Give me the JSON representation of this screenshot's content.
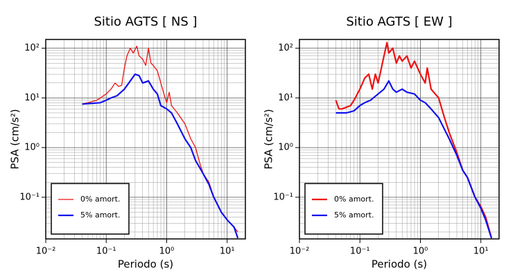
{
  "chart_data": [
    {
      "type": "line",
      "title": "Sitio AGTS [ NS ]",
      "x_label": "Periodo (s)",
      "y_label": "PSA (cm/s²)",
      "xscale": "log",
      "yscale": "log",
      "grid": true,
      "minor_grid": true,
      "legend": "lower left",
      "xlim": [
        0.01,
        20
      ],
      "ylim": [
        0.0145,
        150
      ],
      "xticks": [
        {
          "value": 0.01,
          "label": "10⁻²"
        },
        {
          "value": 0.1,
          "label": "10⁻¹"
        },
        {
          "value": 1,
          "label": "10⁰"
        },
        {
          "value": 10,
          "label": "10¹"
        }
      ],
      "yticks": [
        {
          "value": 0.1,
          "label": "10⁻¹"
        },
        {
          "value": 1,
          "label": "10⁰"
        },
        {
          "value": 10,
          "label": "10¹"
        },
        {
          "value": 100,
          "label": "10²"
        }
      ],
      "series": [
        {
          "name": "0% amort.",
          "color": "#ee1111",
          "width": 1.3,
          "x": [
            0.04,
            0.05,
            0.06,
            0.07,
            0.08,
            0.1,
            0.12,
            0.14,
            0.16,
            0.18,
            0.2,
            0.22,
            0.25,
            0.28,
            0.32,
            0.35,
            0.4,
            0.45,
            0.5,
            0.55,
            0.6,
            0.7,
            0.8,
            0.9,
            1.0,
            1.1,
            1.2,
            1.5,
            2,
            2.5,
            3,
            3.5,
            4,
            5,
            6,
            8,
            10,
            13,
            15
          ],
          "values": [
            7.5,
            8,
            8.5,
            9,
            10,
            12,
            15,
            20,
            17,
            18,
            40,
            70,
            100,
            80,
            110,
            70,
            60,
            45,
            100,
            50,
            45,
            35,
            20,
            12,
            8,
            13,
            7,
            5,
            3,
            1.5,
            1.0,
            0.5,
            0.3,
            0.2,
            0.1,
            0.05,
            0.035,
            0.025,
            0.02
          ]
        },
        {
          "name": "5% amort.",
          "color": "#1111ee",
          "width": 2.2,
          "x": [
            0.04,
            0.06,
            0.08,
            0.1,
            0.12,
            0.15,
            0.2,
            0.25,
            0.3,
            0.35,
            0.4,
            0.5,
            0.6,
            0.7,
            0.8,
            1.0,
            1.2,
            1.5,
            2,
            2.5,
            3,
            4,
            5,
            6,
            8,
            10,
            13,
            15
          ],
          "values": [
            7.5,
            7.8,
            8,
            9,
            10,
            11,
            15,
            22,
            30,
            28,
            20,
            22,
            15,
            12,
            7,
            6,
            5,
            3,
            1.5,
            1.0,
            0.55,
            0.3,
            0.18,
            0.1,
            0.05,
            0.035,
            0.025,
            0.015
          ]
        }
      ]
    },
    {
      "type": "line",
      "title": "Sitio AGTS [ EW ]",
      "x_label": "Periodo (s)",
      "y_label": "PSA (cm/s²)",
      "xscale": "log",
      "yscale": "log",
      "grid": true,
      "minor_grid": true,
      "legend": "lower left",
      "xlim": [
        0.01,
        20
      ],
      "ylim": [
        0.0145,
        150
      ],
      "xticks": [
        {
          "value": 0.01,
          "label": "10⁻²"
        },
        {
          "value": 0.1,
          "label": "10⁻¹"
        },
        {
          "value": 1,
          "label": "10⁰"
        },
        {
          "value": 10,
          "label": "10¹"
        }
      ],
      "yticks": [
        {
          "value": 0.1,
          "label": "10⁻¹"
        },
        {
          "value": 1,
          "label": "10⁰"
        },
        {
          "value": 10,
          "label": "10¹"
        },
        {
          "value": 100,
          "label": "10²"
        }
      ],
      "series": [
        {
          "name": "0% amort.",
          "color": "#ee1111",
          "width": 2.2,
          "x": [
            0.04,
            0.045,
            0.05,
            0.06,
            0.07,
            0.08,
            0.1,
            0.12,
            0.14,
            0.16,
            0.18,
            0.2,
            0.25,
            0.28,
            0.3,
            0.35,
            0.4,
            0.45,
            0.5,
            0.6,
            0.7,
            0.8,
            1.0,
            1.2,
            1.3,
            1.5,
            2,
            2.5,
            3,
            4,
            5,
            6,
            8,
            10,
            12,
            15
          ],
          "values": [
            9,
            6,
            6,
            6.5,
            7,
            9,
            15,
            25,
            30,
            15,
            30,
            20,
            70,
            130,
            80,
            100,
            50,
            70,
            55,
            70,
            40,
            55,
            30,
            20,
            40,
            15,
            10,
            4,
            2,
            0.8,
            0.35,
            0.25,
            0.1,
            0.065,
            0.04,
            0.015
          ]
        },
        {
          "name": "5% amort.",
          "color": "#1111ee",
          "width": 2.2,
          "x": [
            0.04,
            0.06,
            0.08,
            0.1,
            0.12,
            0.15,
            0.2,
            0.25,
            0.3,
            0.35,
            0.4,
            0.5,
            0.6,
            0.8,
            1.0,
            1.2,
            1.5,
            2,
            3,
            4,
            5,
            6,
            8,
            10,
            12,
            15
          ],
          "values": [
            5,
            5,
            5.5,
            7,
            8,
            9,
            12,
            15,
            22,
            15,
            13,
            15,
            13,
            12,
            9,
            8,
            6,
            4,
            1.5,
            0.7,
            0.35,
            0.25,
            0.1,
            0.06,
            0.035,
            0.015
          ]
        }
      ]
    }
  ]
}
